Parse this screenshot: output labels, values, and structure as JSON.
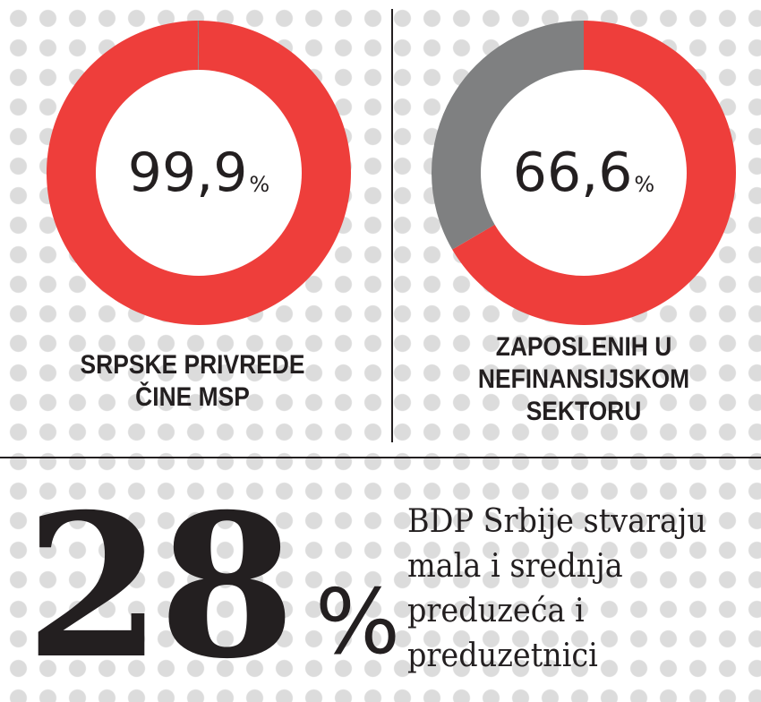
{
  "colors": {
    "primary": "#ee3e3b",
    "secondary": "#7f8081",
    "ink": "#231f20"
  },
  "chart_data": [
    {
      "type": "pie",
      "subtype": "donut",
      "value_label": "99,9",
      "unit": "%",
      "slices": [
        {
          "label": "MSP",
          "value": 99.9,
          "color": "#ee3e3b"
        },
        {
          "label": "",
          "value": 0.1,
          "color": "#7f8081"
        }
      ],
      "caption": [
        "SRPSKE PRIVREDE",
        "ČINE MSP"
      ]
    },
    {
      "type": "pie",
      "subtype": "donut",
      "value_label": "66,6",
      "unit": "%",
      "slices": [
        {
          "label": "MSP",
          "value": 66.6,
          "color": "#ee3e3b"
        },
        {
          "label": "",
          "value": 33.4,
          "color": "#7f8081"
        }
      ],
      "caption": [
        "ZAPOSLENIH U",
        "NEFINANSIJSKOM",
        "SEKTORU"
      ]
    }
  ],
  "bottom": {
    "value": "28",
    "unit": "%",
    "text_lines": [
      "BDP Srbije stvaraju",
      "mala i srednja",
      "preduzeća i",
      "preduzetnici"
    ]
  }
}
